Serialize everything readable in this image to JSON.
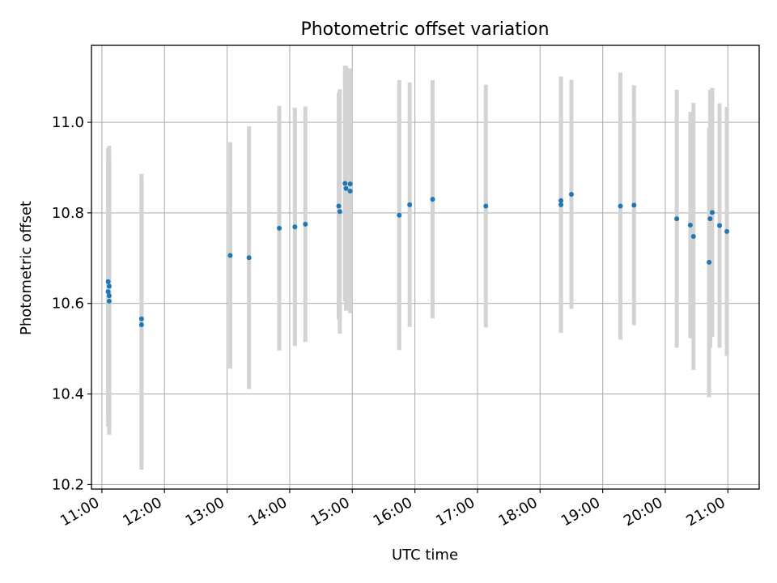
{
  "chart_data": {
    "type": "scatter",
    "title": "Photometric offset variation",
    "xlabel": "UTC time",
    "ylabel": "Photometric offset",
    "xlim": [
      "10:50",
      "21:30"
    ],
    "ylim": [
      10.19,
      11.17
    ],
    "x_ticks": [
      "11:00",
      "12:00",
      "13:00",
      "14:00",
      "15:00",
      "16:00",
      "17:00",
      "18:00",
      "19:00",
      "20:00",
      "21:00"
    ],
    "y_ticks": [
      "10.2",
      "10.4",
      "10.6",
      "10.8",
      "11.0"
    ],
    "grid": true,
    "errorbar_color": "#d3d3d3",
    "point_color": "#1f77b4",
    "points": [
      {
        "x": "11:06",
        "y": 10.648,
        "err": 0.295
      },
      {
        "x": "11:06",
        "y": 10.626,
        "err": 0.298
      },
      {
        "x": "11:07",
        "y": 10.617,
        "err": 0.3
      },
      {
        "x": "11:07",
        "y": 10.605,
        "err": 0.295
      },
      {
        "x": "11:07",
        "y": 10.638,
        "err": 0.31
      },
      {
        "x": "11:38",
        "y": 10.566,
        "err": 0.32
      },
      {
        "x": "11:38",
        "y": 10.553,
        "err": 0.32
      },
      {
        "x": "13:03",
        "y": 10.706,
        "err": 0.25
      },
      {
        "x": "13:21",
        "y": 10.701,
        "err": 0.29
      },
      {
        "x": "13:50",
        "y": 10.766,
        "err": 0.27
      },
      {
        "x": "14:05",
        "y": 10.769,
        "err": 0.263
      },
      {
        "x": "14:15",
        "y": 10.775,
        "err": 0.26
      },
      {
        "x": "14:47",
        "y": 10.815,
        "err": 0.25
      },
      {
        "x": "14:48",
        "y": 10.803,
        "err": 0.27
      },
      {
        "x": "14:53",
        "y": 10.865,
        "err": 0.26
      },
      {
        "x": "14:54",
        "y": 10.854,
        "err": 0.27
      },
      {
        "x": "14:58",
        "y": 10.848,
        "err": 0.27
      },
      {
        "x": "14:58",
        "y": 10.864,
        "err": 0.255
      },
      {
        "x": "15:45",
        "y": 10.795,
        "err": 0.298
      },
      {
        "x": "15:55",
        "y": 10.818,
        "err": 0.27
      },
      {
        "x": "16:17",
        "y": 10.83,
        "err": 0.263
      },
      {
        "x": "17:08",
        "y": 10.815,
        "err": 0.268
      },
      {
        "x": "18:20",
        "y": 10.818,
        "err": 0.283
      },
      {
        "x": "18:20",
        "y": 10.827,
        "err": 0.273
      },
      {
        "x": "18:30",
        "y": 10.841,
        "err": 0.253
      },
      {
        "x": "19:17",
        "y": 10.815,
        "err": 0.295
      },
      {
        "x": "19:30",
        "y": 10.817,
        "err": 0.265
      },
      {
        "x": "20:11",
        "y": 10.787,
        "err": 0.285
      },
      {
        "x": "20:24",
        "y": 10.773,
        "err": 0.25
      },
      {
        "x": "20:27",
        "y": 10.748,
        "err": 0.295
      },
      {
        "x": "20:42",
        "y": 10.691,
        "err": 0.298
      },
      {
        "x": "20:43",
        "y": 10.787,
        "err": 0.285
      },
      {
        "x": "20:45",
        "y": 10.801,
        "err": 0.275
      },
      {
        "x": "20:52",
        "y": 10.772,
        "err": 0.27
      },
      {
        "x": "20:59",
        "y": 10.759,
        "err": 0.275
      }
    ]
  }
}
